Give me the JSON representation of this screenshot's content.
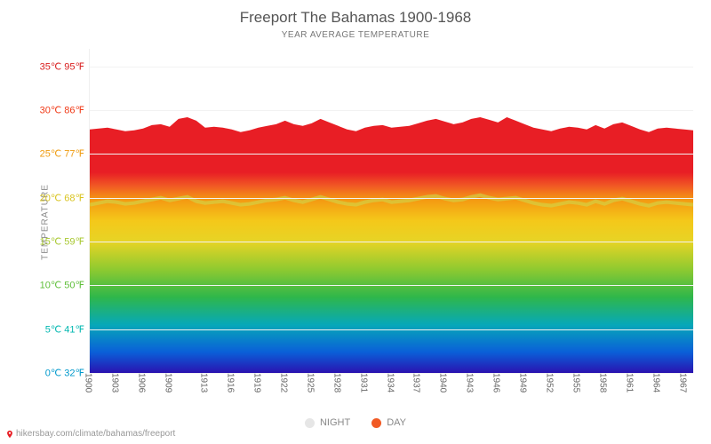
{
  "title": "Freeport The Bahamas 1900-1968",
  "subtitle": "YEAR AVERAGE TEMPERATURE",
  "ylabel": "TEMPERATURE",
  "attribution": "hikersbay.com/climate/bahamas/freeport",
  "chart": {
    "type": "area",
    "background_color": "#ffffff",
    "grid_color": "#f2f2f2",
    "title_color": "#555555",
    "title_fontsize": 17,
    "subtitle_fontsize": 10,
    "label_fontsize": 11,
    "xlim": [
      1900,
      1968
    ],
    "ylim_c": [
      0,
      37
    ],
    "yticks": [
      {
        "c": 0,
        "label": "0℃ 32℉",
        "color": "#0099cc"
      },
      {
        "c": 5,
        "label": "5℃ 41℉",
        "color": "#00b7b0"
      },
      {
        "c": 10,
        "label": "10℃ 50℉",
        "color": "#5fbf3a"
      },
      {
        "c": 15,
        "label": "15℃ 59℉",
        "color": "#a8c830"
      },
      {
        "c": 20,
        "label": "20℃ 68℉",
        "color": "#d9c420"
      },
      {
        "c": 25,
        "label": "25℃ 77℉",
        "color": "#ef9b0f"
      },
      {
        "c": 30,
        "label": "30℃ 86℉",
        "color": "#f03a17"
      },
      {
        "c": 35,
        "label": "35℃ 95℉",
        "color": "#d92020"
      }
    ],
    "xticks": [
      1900,
      1903,
      1906,
      1909,
      1913,
      1916,
      1919,
      1922,
      1925,
      1928,
      1931,
      1934,
      1937,
      1940,
      1943,
      1946,
      1949,
      1952,
      1955,
      1958,
      1961,
      1964,
      1967
    ],
    "gradient_stops": [
      {
        "c": 0,
        "color": "#2a12b0"
      },
      {
        "c": 3,
        "color": "#0a5fd8"
      },
      {
        "c": 7,
        "color": "#07a8b8"
      },
      {
        "c": 11,
        "color": "#2fb74a"
      },
      {
        "c": 15,
        "color": "#8fca30"
      },
      {
        "c": 19,
        "color": "#e7d425"
      },
      {
        "c": 22,
        "color": "#f4c81a"
      },
      {
        "c": 25,
        "color": "#f49a12"
      },
      {
        "c": 27,
        "color": "#f15a24"
      },
      {
        "c": 29,
        "color": "#e81e25"
      }
    ],
    "series": {
      "day": {
        "label": "DAY",
        "legend_color": "#f15a24",
        "years": [
          1900,
          1901,
          1902,
          1903,
          1904,
          1905,
          1906,
          1907,
          1908,
          1909,
          1910,
          1911,
          1912,
          1913,
          1914,
          1915,
          1916,
          1917,
          1918,
          1919,
          1920,
          1921,
          1922,
          1923,
          1924,
          1925,
          1926,
          1927,
          1928,
          1929,
          1930,
          1931,
          1932,
          1933,
          1934,
          1935,
          1936,
          1937,
          1938,
          1939,
          1940,
          1941,
          1942,
          1943,
          1944,
          1945,
          1946,
          1947,
          1948,
          1949,
          1950,
          1951,
          1952,
          1953,
          1954,
          1955,
          1956,
          1957,
          1958,
          1959,
          1960,
          1961,
          1962,
          1963,
          1964,
          1965,
          1966,
          1967,
          1968
        ],
        "values": [
          27.8,
          27.9,
          28.0,
          27.8,
          27.6,
          27.7,
          27.9,
          28.3,
          28.4,
          28.1,
          29.0,
          29.2,
          28.8,
          28.0,
          28.1,
          28.0,
          27.8,
          27.5,
          27.7,
          28.0,
          28.2,
          28.4,
          28.8,
          28.4,
          28.2,
          28.5,
          29.0,
          28.6,
          28.2,
          27.8,
          27.6,
          28.0,
          28.2,
          28.3,
          28.0,
          28.1,
          28.2,
          28.5,
          28.8,
          29.0,
          28.7,
          28.4,
          28.6,
          29.0,
          29.2,
          28.9,
          28.6,
          29.2,
          28.8,
          28.4,
          28.0,
          27.8,
          27.6,
          27.9,
          28.1,
          28.0,
          27.8,
          28.3,
          27.9,
          28.4,
          28.6,
          28.2,
          27.8,
          27.5,
          27.9,
          28.0,
          27.9,
          27.8,
          27.7
        ]
      },
      "night": {
        "label": "NIGHT",
        "legend_color": "#e6e6e6",
        "years": [
          1900,
          1901,
          1902,
          1903,
          1904,
          1905,
          1906,
          1907,
          1908,
          1909,
          1910,
          1911,
          1912,
          1913,
          1914,
          1915,
          1916,
          1917,
          1918,
          1919,
          1920,
          1921,
          1922,
          1923,
          1924,
          1925,
          1926,
          1927,
          1928,
          1929,
          1930,
          1931,
          1932,
          1933,
          1934,
          1935,
          1936,
          1937,
          1938,
          1939,
          1940,
          1941,
          1942,
          1943,
          1944,
          1945,
          1946,
          1947,
          1948,
          1949,
          1950,
          1951,
          1952,
          1953,
          1954,
          1955,
          1956,
          1957,
          1958,
          1959,
          1960,
          1961,
          1962,
          1963,
          1964,
          1965,
          1966,
          1967,
          1968
        ],
        "values": [
          19.2,
          19.4,
          19.6,
          19.5,
          19.3,
          19.4,
          19.6,
          19.8,
          20.0,
          19.7,
          19.9,
          20.1,
          19.6,
          19.4,
          19.5,
          19.6,
          19.4,
          19.2,
          19.3,
          19.5,
          19.7,
          19.8,
          20.0,
          19.7,
          19.5,
          19.8,
          20.1,
          19.8,
          19.5,
          19.3,
          19.2,
          19.5,
          19.7,
          19.8,
          19.5,
          19.6,
          19.7,
          19.9,
          20.1,
          20.2,
          19.9,
          19.7,
          19.8,
          20.1,
          20.3,
          20.0,
          19.8,
          19.9,
          20.0,
          19.7,
          19.4,
          19.2,
          19.1,
          19.3,
          19.5,
          19.4,
          19.2,
          19.6,
          19.3,
          19.7,
          19.9,
          19.6,
          19.3,
          19.1,
          19.4,
          19.5,
          19.4,
          19.3,
          19.2
        ]
      }
    },
    "night_line": {
      "stroke": "#d0d84a",
      "stroke_width": 1.5,
      "opacity": 0.6
    }
  },
  "legend": {
    "position": "bottom-center",
    "fontsize": 11,
    "label_color": "#888888"
  },
  "attribution_pin_color": "#e81e25"
}
